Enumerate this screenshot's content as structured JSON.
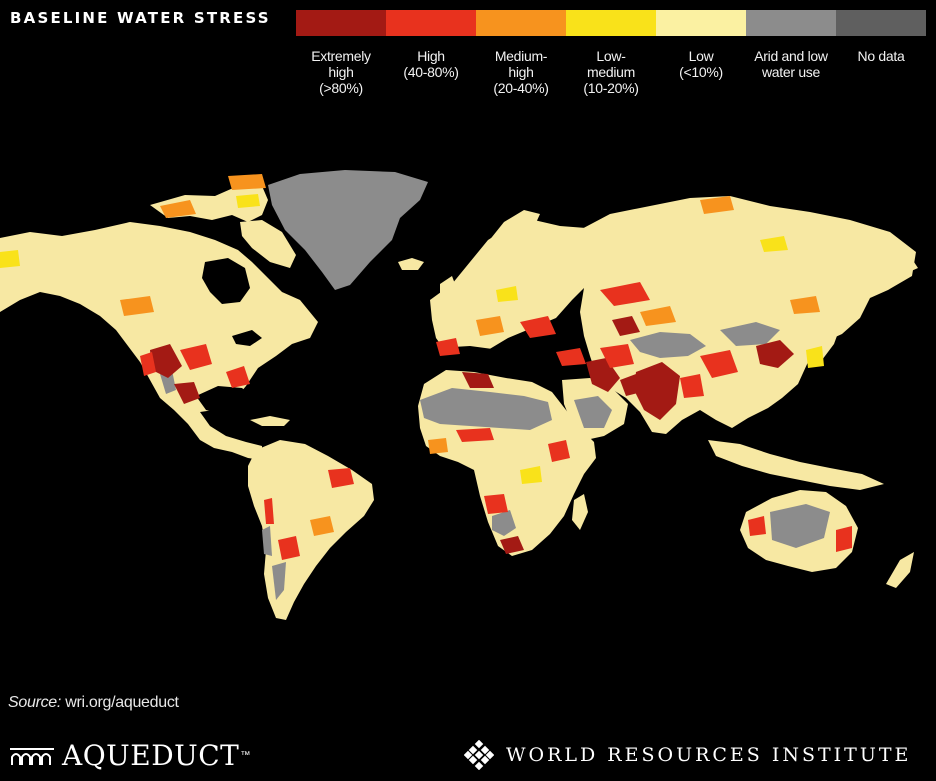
{
  "title": "BASELINE WATER STRESS",
  "legend": [
    {
      "label_lines": [
        "Extremely",
        "high",
        "(>80%)"
      ],
      "color": "#a31a14"
    },
    {
      "label_lines": [
        "High",
        "(40-80%)"
      ],
      "color": "#e8321e"
    },
    {
      "label_lines": [
        "Medium-",
        "high",
        "(20-40%)"
      ],
      "color": "#f7931e"
    },
    {
      "label_lines": [
        "Low-",
        "medium",
        "(10-20%)"
      ],
      "color": "#f9e21a"
    },
    {
      "label_lines": [
        "Low",
        "(<10%)"
      ],
      "color": "#fbf1a2"
    },
    {
      "label_lines": [
        "Arid and low",
        "water use"
      ],
      "color": "#8c8c8c"
    },
    {
      "label_lines": [
        "No data"
      ],
      "color": "#5f5f5f"
    }
  ],
  "map": {
    "land_color": "#f7e8a3",
    "arid_color": "#8c8c8c",
    "high_color": "#e8321e",
    "extreme_color": "#a31a14",
    "medium_high_color": "#f7931e",
    "low_medium_color": "#f9e21a"
  },
  "footer": {
    "source_label": "Source:",
    "source_url": "wri.org/aqueduct",
    "aqueduct_logo": "AQUEDUCT",
    "wri_logo": "WORLD RESOURCES INSTITUTE"
  }
}
